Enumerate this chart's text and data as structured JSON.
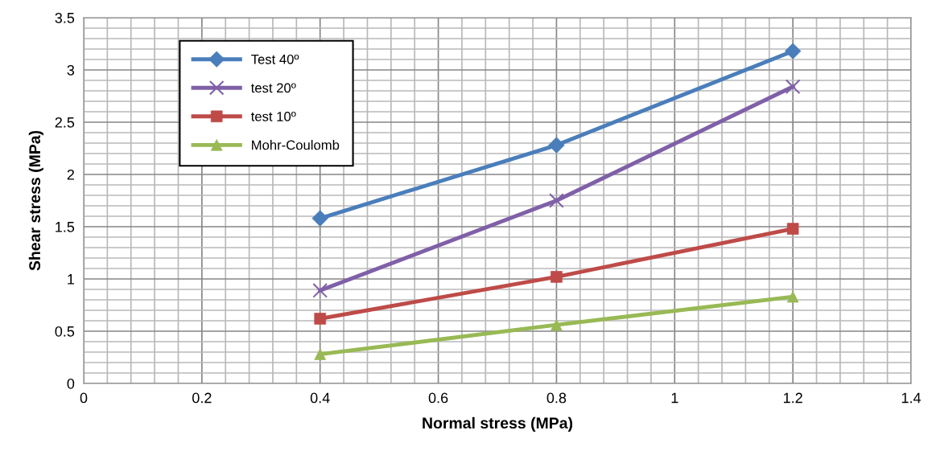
{
  "chart_data": {
    "type": "line",
    "xlabel": "Normal stress (MPa)",
    "ylabel": "Shear stress (MPa)",
    "x": [
      0.4,
      0.8,
      1.2
    ],
    "series": [
      {
        "name": "Test 40º",
        "color": "#4a7ebb",
        "marker": "diamond",
        "values": [
          1.58,
          2.28,
          3.18
        ]
      },
      {
        "name": "test 20º",
        "color": "#7f60a8",
        "marker": "cross",
        "values": [
          0.89,
          1.75,
          2.84
        ]
      },
      {
        "name": "test 10º",
        "color": "#be4b48",
        "marker": "square",
        "values": [
          0.62,
          1.02,
          1.48
        ]
      },
      {
        "name": "Mohr-Coulomb",
        "color": "#98b954",
        "marker": "triangle",
        "values": [
          0.28,
          0.56,
          0.83
        ]
      }
    ],
    "xlim": [
      0,
      1.4
    ],
    "xticks": [
      0,
      0.2,
      0.4,
      0.6,
      0.8,
      1,
      1.2,
      1.4
    ],
    "ylim": [
      0,
      3.5
    ],
    "yticks": [
      0,
      0.5,
      1,
      1.5,
      2,
      2.5,
      3,
      3.5
    ],
    "grid": true,
    "legend": "top left",
    "line_style": "solid"
  }
}
